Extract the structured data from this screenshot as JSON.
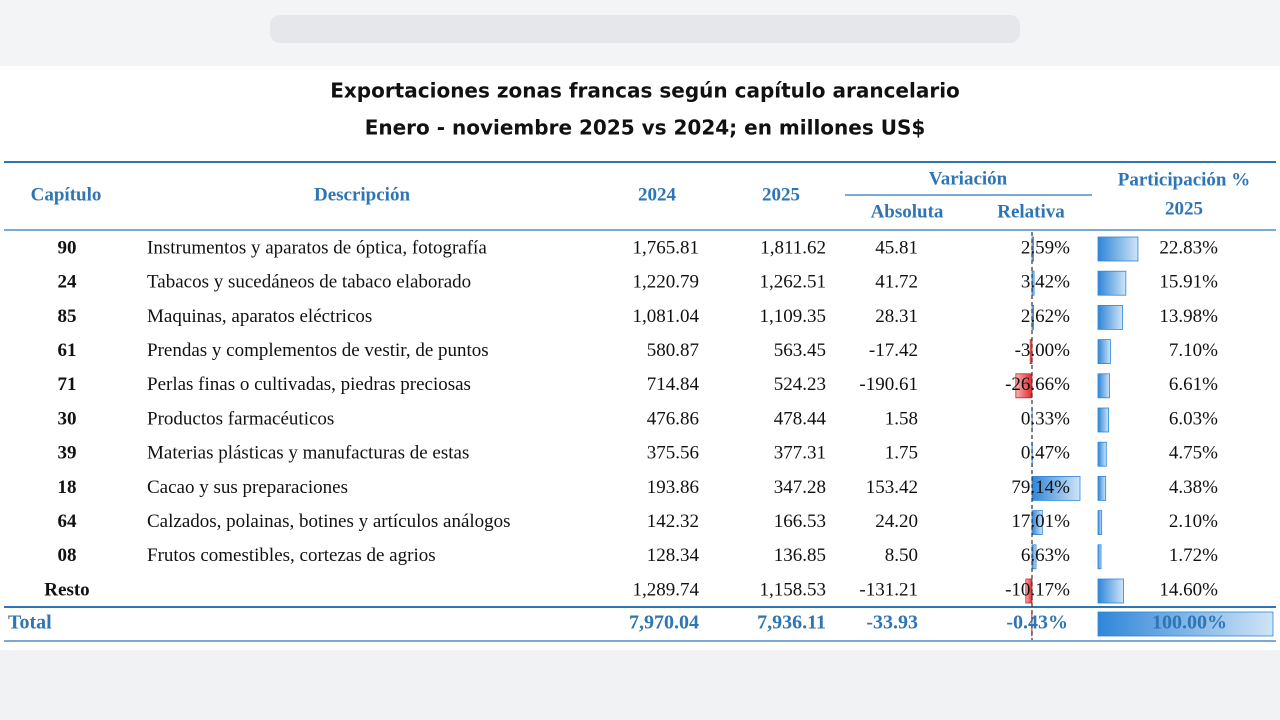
{
  "header": {
    "title": "Exportaciones zonas francas según capítulo arancelario",
    "subtitle": "Enero - noviembre 2025 vs 2024; en millones US$"
  },
  "table": {
    "columns": {
      "capitulo": "Capítulo",
      "descripcion": "Descripción",
      "y2024": "2024",
      "y2025": "2025",
      "variacion": "Variación",
      "absoluta": "Absoluta",
      "relativa": "Relativa",
      "participacion": "Participación %",
      "participacion_year": "2025"
    },
    "rows": [
      {
        "capitulo": "90",
        "descripcion": "Instrumentos y aparatos de óptica, fotografía",
        "v2024": "1,765.81",
        "v2025": "1,811.62",
        "absoluta": "45.81",
        "relativa": {
          "value": 2.59,
          "label": "2.59%"
        },
        "participacion": {
          "value": 22.83,
          "label": "22.83%"
        }
      },
      {
        "capitulo": "24",
        "descripcion": "Tabacos y sucedáneos de tabaco elaborado",
        "v2024": "1,220.79",
        "v2025": "1,262.51",
        "absoluta": "41.72",
        "relativa": {
          "value": 3.42,
          "label": "3.42%"
        },
        "participacion": {
          "value": 15.91,
          "label": "15.91%"
        }
      },
      {
        "capitulo": "85",
        "descripcion": "Maquinas, aparatos eléctricos",
        "v2024": "1,081.04",
        "v2025": "1,109.35",
        "absoluta": "28.31",
        "relativa": {
          "value": 2.62,
          "label": "2.62%"
        },
        "participacion": {
          "value": 13.98,
          "label": "13.98%"
        }
      },
      {
        "capitulo": "61",
        "descripcion": "Prendas y complementos de vestir, de puntos",
        "v2024": "580.87",
        "v2025": "563.45",
        "absoluta": "-17.42",
        "relativa": {
          "value": -3.0,
          "label": "-3.00%"
        },
        "participacion": {
          "value": 7.1,
          "label": "7.10%"
        }
      },
      {
        "capitulo": "71",
        "descripcion": "Perlas finas o cultivadas, piedras preciosas",
        "v2024": "714.84",
        "v2025": "524.23",
        "absoluta": "-190.61",
        "relativa": {
          "value": -26.66,
          "label": "-26.66%"
        },
        "participacion": {
          "value": 6.61,
          "label": "6.61%"
        }
      },
      {
        "capitulo": "30",
        "descripcion": "Productos farmacéuticos",
        "v2024": "476.86",
        "v2025": "478.44",
        "absoluta": "1.58",
        "relativa": {
          "value": 0.33,
          "label": "0.33%"
        },
        "participacion": {
          "value": 6.03,
          "label": "6.03%"
        }
      },
      {
        "capitulo": "39",
        "descripcion": "Materias plásticas y manufacturas de estas",
        "v2024": "375.56",
        "v2025": "377.31",
        "absoluta": "1.75",
        "relativa": {
          "value": 0.47,
          "label": "0.47%"
        },
        "participacion": {
          "value": 4.75,
          "label": "4.75%"
        }
      },
      {
        "capitulo": "18",
        "descripcion": "Cacao y sus preparaciones",
        "v2024": "193.86",
        "v2025": "347.28",
        "absoluta": "153.42",
        "relativa": {
          "value": 79.14,
          "label": "79.14%"
        },
        "participacion": {
          "value": 4.38,
          "label": "4.38%"
        }
      },
      {
        "capitulo": "64",
        "descripcion": "Calzados, polainas, botines y artículos análogos",
        "v2024": "142.32",
        "v2025": "166.53",
        "absoluta": "24.20",
        "relativa": {
          "value": 17.01,
          "label": "17.01%"
        },
        "participacion": {
          "value": 2.1,
          "label": "2.10%"
        }
      },
      {
        "capitulo": "08",
        "descripcion": "Frutos comestibles, cortezas de agrios",
        "v2024": "128.34",
        "v2025": "136.85",
        "absoluta": "8.50",
        "relativa": {
          "value": 6.63,
          "label": "6.63%"
        },
        "participacion": {
          "value": 1.72,
          "label": "1.72%"
        }
      },
      {
        "capitulo": "Resto",
        "v2024": "1,289.74",
        "v2025": "1,158.53",
        "absoluta": "-131.21",
        "relativa": {
          "value": -10.17,
          "label": "-10.17%"
        },
        "participacion": {
          "value": 14.6,
          "label": "14.60%"
        }
      }
    ],
    "total": {
      "capitulo": "Total",
      "v2024": "7,970.04",
      "v2025": "7,936.11",
      "absoluta": "-33.93",
      "relativa": {
        "value": -0.43,
        "label": "-0.43%"
      },
      "participacion": {
        "value": 100.0,
        "label": "100.00%"
      }
    }
  }
}
